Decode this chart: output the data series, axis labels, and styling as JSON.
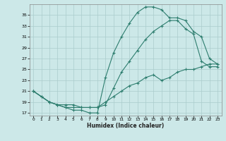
{
  "xlabel": "Humidex (Indice chaleur)",
  "bg_color": "#cce8e8",
  "line_color": "#2d7d6e",
  "grid_color": "#aacccc",
  "xlim": [
    -0.5,
    23.5
  ],
  "ylim": [
    16.5,
    37
  ],
  "yticks": [
    17,
    19,
    21,
    23,
    25,
    27,
    29,
    31,
    33,
    35
  ],
  "xticks": [
    0,
    1,
    2,
    3,
    4,
    5,
    6,
    7,
    8,
    9,
    10,
    11,
    12,
    13,
    14,
    15,
    16,
    17,
    18,
    19,
    20,
    21,
    22,
    23
  ],
  "line1_x": [
    0,
    1,
    2,
    3,
    4,
    5,
    6,
    7,
    8,
    9,
    10,
    11,
    12,
    13,
    14,
    15,
    16,
    17,
    18,
    19,
    20,
    21,
    22,
    23
  ],
  "line1_y": [
    21,
    20,
    19,
    18.5,
    18,
    17.5,
    17.5,
    17,
    17,
    23.5,
    28,
    31,
    33.5,
    35.5,
    36.5,
    36.5,
    36,
    34.5,
    34.5,
    34,
    32,
    31,
    27,
    26
  ],
  "line2_x": [
    0,
    2,
    3,
    4,
    5,
    6,
    7,
    8,
    9,
    10,
    11,
    12,
    13,
    14,
    15,
    16,
    17,
    18,
    19,
    20,
    21,
    22,
    23
  ],
  "line2_y": [
    21,
    19,
    18.5,
    18,
    18,
    18,
    18,
    18,
    18.5,
    21.5,
    24.5,
    26.5,
    28.5,
    30.5,
    32,
    33,
    34,
    34,
    32.5,
    31.5,
    26.5,
    25.5,
    25.5
  ],
  "line3_x": [
    0,
    1,
    2,
    3,
    4,
    5,
    6,
    7,
    8,
    9,
    10,
    11,
    12,
    13,
    14,
    15,
    16,
    17,
    18,
    19,
    20,
    21,
    22,
    23
  ],
  "line3_y": [
    21,
    20,
    19,
    18.5,
    18.5,
    18.5,
    18,
    18,
    18,
    19,
    20,
    21,
    22,
    22.5,
    23.5,
    24,
    23,
    23.5,
    24.5,
    25,
    25,
    25.5,
    26,
    26
  ]
}
